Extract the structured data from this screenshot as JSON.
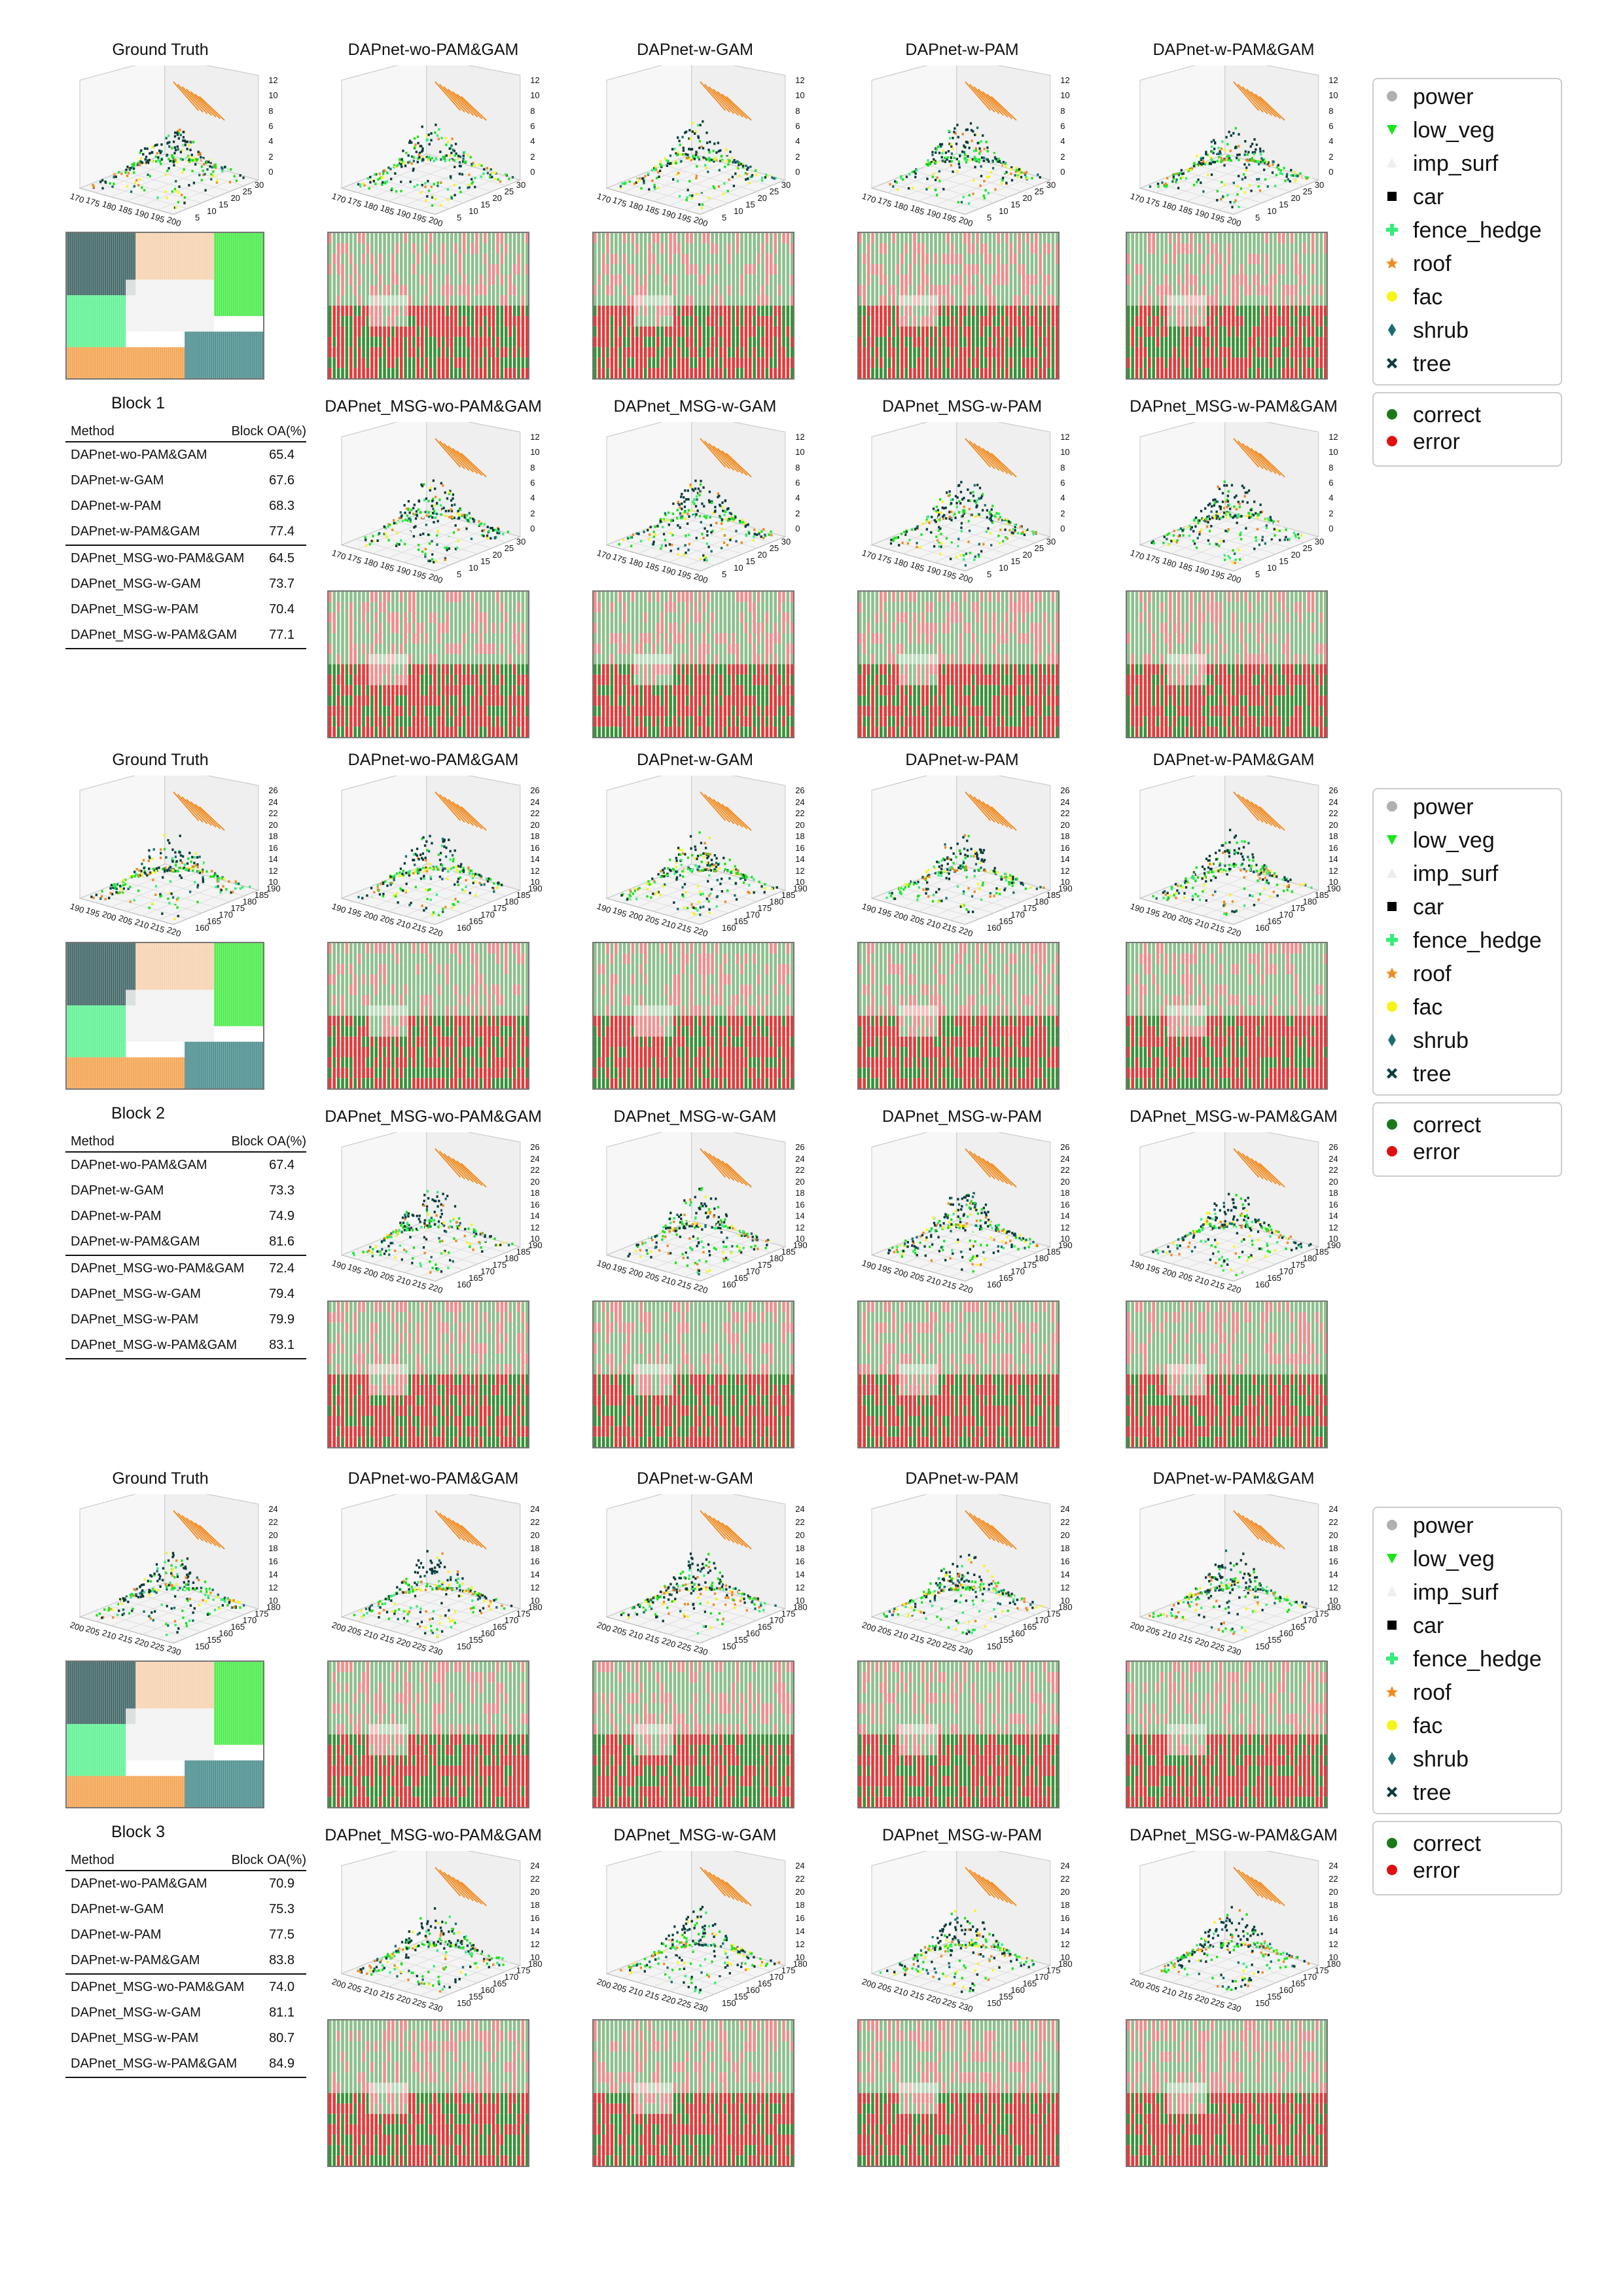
{
  "legend": {
    "classes": [
      {
        "label": "power",
        "color": "#b0b0b0",
        "icon": "circle-icon"
      },
      {
        "label": "low_veg",
        "color": "#19e619",
        "icon": "triangle-down-icon"
      },
      {
        "label": "imp_surf",
        "color": "#eeeeee",
        "icon": "triangle-up-icon"
      },
      {
        "label": "car",
        "color": "#000000",
        "icon": "square-icon"
      },
      {
        "label": "fence_hedge",
        "color": "#33ee77",
        "icon": "plus-icon"
      },
      {
        "label": "roof",
        "color": "#f08a1e",
        "icon": "star-icon"
      },
      {
        "label": "fac",
        "color": "#f5f51a",
        "icon": "circle-icon"
      },
      {
        "label": "shrub",
        "color": "#1a6e6e",
        "icon": "diamond-icon"
      },
      {
        "label": "tree",
        "color": "#0c3b3b",
        "icon": "x-icon"
      }
    ],
    "status": [
      {
        "label": "correct",
        "color": "#1a7a1a",
        "icon": "circle-icon"
      },
      {
        "label": "error",
        "color": "#e01010",
        "icon": "circle-icon"
      }
    ]
  },
  "blocks": [
    {
      "name": "Block 1",
      "gt_title": "Ground Truth",
      "titles_row1": [
        "DAPnet-wo-PAM&GAM",
        "DAPnet-w-GAM",
        "DAPnet-w-PAM",
        "DAPnet-w-PAM&GAM"
      ],
      "titles_row2": [
        "DAPnet_MSG-wo-PAM&GAM",
        "DAPnet_MSG-w-GAM",
        "DAPnet_MSG-w-PAM",
        "DAPnet_MSG-w-PAM&GAM"
      ],
      "xticks": [
        "170",
        "175",
        "180",
        "185",
        "190",
        "195",
        "200"
      ],
      "yticks": [
        "5",
        "10",
        "15",
        "20",
        "25",
        "30"
      ],
      "zticks": [
        "0",
        "2",
        "4",
        "6",
        "8",
        "10",
        "12"
      ],
      "table": {
        "col1": "Method",
        "col2": "Block OA(%)",
        "rows": [
          {
            "method": "DAPnet-wo-PAM&GAM",
            "oa": "65.4"
          },
          {
            "method": "DAPnet-w-GAM",
            "oa": "67.6"
          },
          {
            "method": "DAPnet-w-PAM",
            "oa": "68.3"
          },
          {
            "method": "DAPnet-w-PAM&GAM",
            "oa": "77.4"
          },
          {
            "method": "DAPnet_MSG-wo-PAM&GAM",
            "oa": "64.5"
          },
          {
            "method": "DAPnet_MSG-w-GAM",
            "oa": "73.7"
          },
          {
            "method": "DAPnet_MSG-w-PAM",
            "oa": "70.4"
          },
          {
            "method": "DAPnet_MSG-w-PAM&GAM",
            "oa": "77.1"
          }
        ]
      }
    },
    {
      "name": "Block 2",
      "gt_title": "Ground Truth",
      "titles_row1": [
        "DAPnet-wo-PAM&GAM",
        "DAPnet-w-GAM",
        "DAPnet-w-PAM",
        "DAPnet-w-PAM&GAM"
      ],
      "titles_row2": [
        "DAPnet_MSG-wo-PAM&GAM",
        "DAPnet_MSG-w-GAM",
        "DAPnet_MSG-w-PAM",
        "DAPnet_MSG-w-PAM&GAM"
      ],
      "xticks": [
        "190",
        "195",
        "200",
        "205",
        "210",
        "215",
        "220"
      ],
      "yticks": [
        "160",
        "165",
        "170",
        "175",
        "180",
        "185",
        "190"
      ],
      "zticks": [
        "10",
        "12",
        "14",
        "16",
        "18",
        "20",
        "22",
        "24",
        "26"
      ],
      "table": {
        "col1": "Method",
        "col2": "Block OA(%)",
        "rows": [
          {
            "method": "DAPnet-wo-PAM&GAM",
            "oa": "67.4"
          },
          {
            "method": "DAPnet-w-GAM",
            "oa": "73.3"
          },
          {
            "method": "DAPnet-w-PAM",
            "oa": "74.9"
          },
          {
            "method": "DAPnet-w-PAM&GAM",
            "oa": "81.6"
          },
          {
            "method": "DAPnet_MSG-wo-PAM&GAM",
            "oa": "72.4"
          },
          {
            "method": "DAPnet_MSG-w-GAM",
            "oa": "79.4"
          },
          {
            "method": "DAPnet_MSG-w-PAM",
            "oa": "79.9"
          },
          {
            "method": "DAPnet_MSG-w-PAM&GAM",
            "oa": "83.1"
          }
        ]
      }
    },
    {
      "name": "Block 3",
      "gt_title": "Ground Truth",
      "titles_row1": [
        "DAPnet-wo-PAM&GAM",
        "DAPnet-w-GAM",
        "DAPnet-w-PAM",
        "DAPnet-w-PAM&GAM"
      ],
      "titles_row2": [
        "DAPnet_MSG-wo-PAM&GAM",
        "DAPnet_MSG-w-GAM",
        "DAPnet_MSG-w-PAM",
        "DAPnet_MSG-w-PAM&GAM"
      ],
      "xticks": [
        "200",
        "205",
        "210",
        "215",
        "220",
        "225",
        "230"
      ],
      "yticks": [
        "150",
        "155",
        "160",
        "165",
        "170",
        "175",
        "180"
      ],
      "zticks": [
        "10",
        "12",
        "14",
        "16",
        "18",
        "20",
        "22",
        "24"
      ],
      "table": {
        "col1": "Method",
        "col2": "Block OA(%)",
        "rows": [
          {
            "method": "DAPnet-wo-PAM&GAM",
            "oa": "70.9"
          },
          {
            "method": "DAPnet-w-GAM",
            "oa": "75.3"
          },
          {
            "method": "DAPnet-w-PAM",
            "oa": "77.5"
          },
          {
            "method": "DAPnet-w-PAM&GAM",
            "oa": "83.8"
          },
          {
            "method": "DAPnet_MSG-wo-PAM&GAM",
            "oa": "74.0"
          },
          {
            "method": "DAPnet_MSG-w-GAM",
            "oa": "81.1"
          },
          {
            "method": "DAPnet_MSG-w-PAM",
            "oa": "80.7"
          },
          {
            "method": "DAPnet_MSG-w-PAM&GAM",
            "oa": "84.9"
          }
        ]
      }
    }
  ]
}
